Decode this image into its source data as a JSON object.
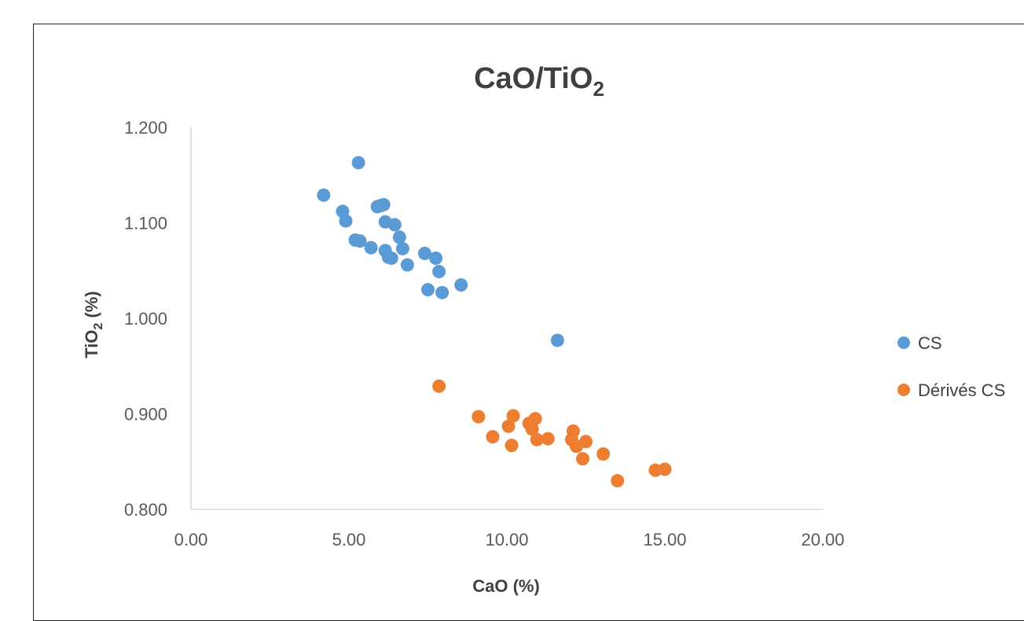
{
  "chart_data": {
    "type": "scatter",
    "title": "CaO/TiO",
    "title_subscript": "2",
    "xlabel": "CaO (%)",
    "ylabel_main": "TiO",
    "ylabel_subscript": "2",
    "ylabel_suffix": " (%)",
    "xlim": [
      0,
      20
    ],
    "ylim": [
      0.8,
      1.2
    ],
    "x_ticks": [
      0,
      5,
      10,
      15,
      20
    ],
    "x_tick_labels": [
      "0.00",
      "5.00",
      "10.00",
      "15.00",
      "20.00"
    ],
    "y_ticks": [
      0.8,
      0.9,
      1.0,
      1.1,
      1.2
    ],
    "y_tick_labels": [
      "0.800",
      "0.900",
      "1.000",
      "1.100",
      "1.200"
    ],
    "grid": false,
    "legend_position": "right",
    "series": [
      {
        "name": "CS",
        "color": "#5B9BD5",
        "points": [
          [
            4.2,
            1.129
          ],
          [
            5.3,
            1.163
          ],
          [
            4.8,
            1.112
          ],
          [
            4.9,
            1.102
          ],
          [
            5.9,
            1.117
          ],
          [
            6.0,
            1.118
          ],
          [
            6.1,
            1.119
          ],
          [
            6.15,
            1.101
          ],
          [
            6.45,
            1.098
          ],
          [
            5.2,
            1.082
          ],
          [
            5.35,
            1.081
          ],
          [
            5.7,
            1.074
          ],
          [
            6.15,
            1.071
          ],
          [
            6.6,
            1.085
          ],
          [
            6.7,
            1.073
          ],
          [
            6.25,
            1.064
          ],
          [
            6.35,
            1.063
          ],
          [
            6.85,
            1.056
          ],
          [
            7.4,
            1.068
          ],
          [
            7.75,
            1.063
          ],
          [
            7.85,
            1.049
          ],
          [
            7.5,
            1.03
          ],
          [
            7.95,
            1.027
          ],
          [
            8.55,
            1.035
          ],
          [
            11.6,
            0.977
          ]
        ]
      },
      {
        "name": "Dérivés CS",
        "color": "#ED7D31",
        "points": [
          [
            7.85,
            0.929
          ],
          [
            9.1,
            0.897
          ],
          [
            9.55,
            0.876
          ],
          [
            10.05,
            0.887
          ],
          [
            10.2,
            0.898
          ],
          [
            10.15,
            0.867
          ],
          [
            10.7,
            0.89
          ],
          [
            10.8,
            0.884
          ],
          [
            10.9,
            0.895
          ],
          [
            10.95,
            0.873
          ],
          [
            11.3,
            0.874
          ],
          [
            12.1,
            0.882
          ],
          [
            12.05,
            0.873
          ],
          [
            12.2,
            0.866
          ],
          [
            12.5,
            0.871
          ],
          [
            12.4,
            0.853
          ],
          [
            13.05,
            0.858
          ],
          [
            13.5,
            0.83
          ],
          [
            14.7,
            0.841
          ],
          [
            15.0,
            0.842
          ]
        ]
      }
    ]
  }
}
